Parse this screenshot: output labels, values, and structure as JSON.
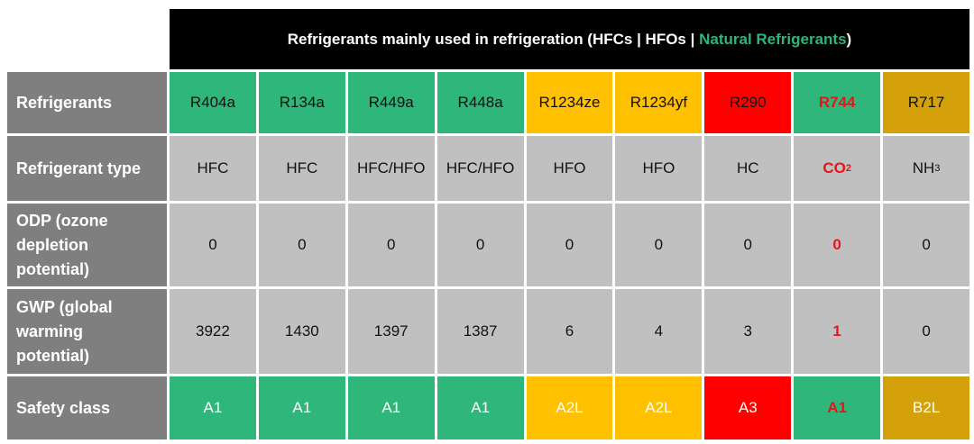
{
  "header": {
    "title_parts": [
      "Refrigerants mainly used in refrigeration (HFCs | HFOs | ",
      "Natural Refrigerants",
      ")"
    ]
  },
  "table": {
    "row_labels": [
      "Refrigerants",
      "Refrigerant type",
      "ODP (ozone depletion potential)",
      "GWP (global warming potential)",
      "Safety class"
    ],
    "rows": [
      [
        "R404a",
        "R134a",
        "R449a",
        "R448a",
        "R1234ze",
        "R1234yf",
        "R290",
        "R744",
        "R717"
      ],
      [
        "HFC",
        "HFC",
        "HFC/HFO",
        "HFC/HFO",
        "HFO",
        "HFO",
        "HC",
        {
          "text": "CO",
          "sub": "2"
        },
        {
          "text": "NH",
          "sub": "3"
        }
      ],
      [
        0,
        0,
        0,
        0,
        0,
        0,
        0,
        0,
        0
      ],
      [
        3922,
        1430,
        1397,
        1387,
        6,
        4,
        3,
        1,
        0
      ],
      [
        "A1",
        "A1",
        "A1",
        "A1",
        "A2L",
        "A2L",
        "A3",
        "A1",
        "B2L"
      ]
    ]
  }
}
